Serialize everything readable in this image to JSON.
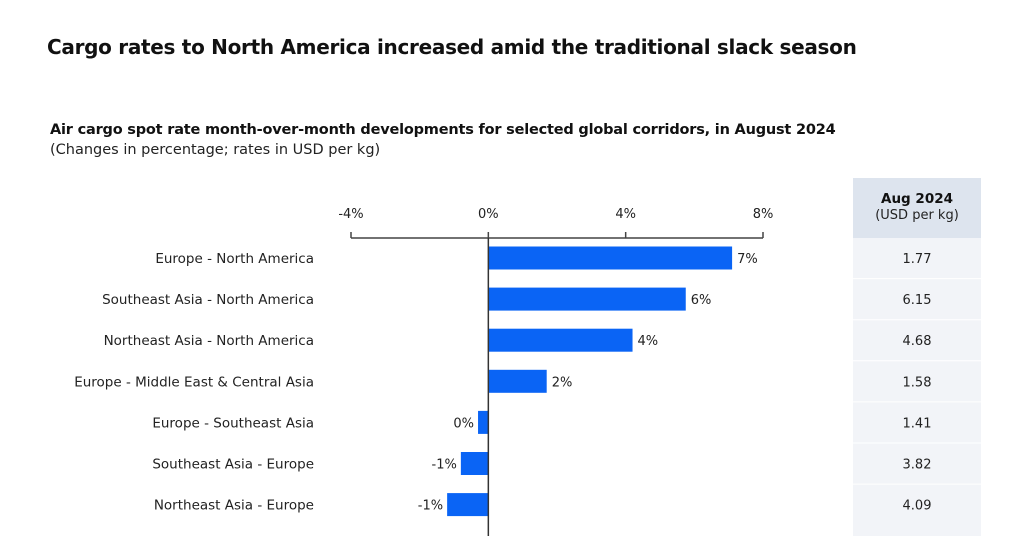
{
  "headline": "Cargo rates to North America increased amid the traditional slack season",
  "chart_data": {
    "type": "bar",
    "orientation": "horizontal",
    "title": "Air cargo spot rate month-over-month developments for selected global corridors, in August 2024",
    "subtitle": "(Changes in percentage; rates in USD per kg)",
    "xlim": [
      -4,
      8
    ],
    "ticks": [
      -4,
      0,
      4,
      8
    ],
    "tick_labels": [
      "-4%",
      "0%",
      "4%",
      "8%"
    ],
    "bar_color": "#0a64f5",
    "categories": [
      "Europe - North America",
      "Southeast Asia - North America",
      "Northeast Asia - North America",
      "Europe - Middle East & Central Asia",
      "Europe - Southeast Asia",
      "Southeast Asia - Europe",
      "Northeast Asia - Europe"
    ],
    "values": [
      7.1,
      5.75,
      4.2,
      1.7,
      -0.3,
      -0.8,
      -1.2
    ],
    "data_labels": [
      "7%",
      "6%",
      "4%",
      "2%",
      "0%",
      "-1%",
      "-1%"
    ],
    "table": {
      "header": "Aug 2024",
      "header_unit": "(USD per kg)",
      "values": [
        "1.77",
        "6.15",
        "4.68",
        "1.58",
        "1.41",
        "3.82",
        "4.09"
      ]
    }
  }
}
